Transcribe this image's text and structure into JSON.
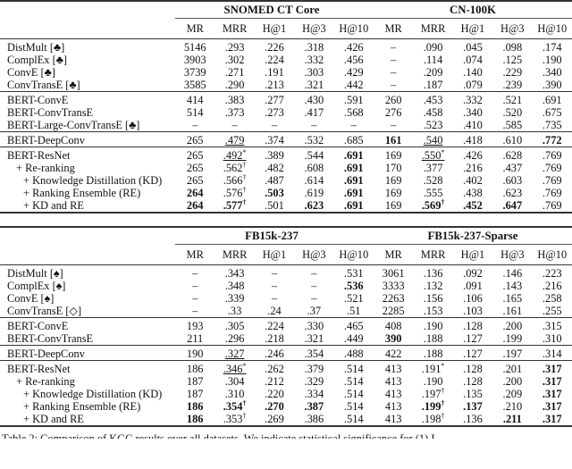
{
  "columns": [
    "MR",
    "MRR",
    "H@1",
    "H@3",
    "H@10",
    "MR",
    "MRR",
    "H@1",
    "H@3",
    "H@10"
  ],
  "tables": [
    {
      "datasets": [
        "SNOMED CT Core",
        "CN-100K"
      ],
      "groups": [
        [
          {
            "label": "DistMult [♣]",
            "cells": [
              "5146",
              ".293",
              ".226",
              ".318",
              ".426",
              "–",
              ".090",
              ".045",
              ".098",
              ".174"
            ]
          },
          {
            "label": "ComplEx [♣]",
            "cells": [
              "3903",
              ".302",
              ".224",
              ".332",
              ".456",
              "–",
              ".114",
              ".074",
              ".125",
              ".190"
            ]
          },
          {
            "label": "ConvE [♣]",
            "cells": [
              "3739",
              ".271",
              ".191",
              ".303",
              ".429",
              "–",
              ".209",
              ".140",
              ".229",
              ".340"
            ]
          },
          {
            "label": "ConvTransE [♣]",
            "cells": [
              "3585",
              ".290",
              ".213",
              ".321",
              ".442",
              "–",
              ".187",
              ".079",
              ".239",
              ".390"
            ]
          }
        ],
        [
          {
            "label": "BERT-ConvE",
            "cells": [
              "414",
              ".383",
              ".277",
              ".430",
              ".591",
              "260",
              ".453",
              ".332",
              ".521",
              ".691"
            ]
          },
          {
            "label": "BERT-ConvTransE",
            "cells": [
              "514",
              ".373",
              ".273",
              ".417",
              ".568",
              "276",
              ".458",
              ".340",
              ".520",
              ".675"
            ]
          },
          {
            "label": "BERT-Large-ConvTransE [♣]",
            "cells": [
              "–",
              "–",
              "–",
              "–",
              "–",
              "–",
              ".523",
              ".410",
              ".585",
              ".735"
            ]
          }
        ],
        [
          {
            "label": "BERT-DeepConv",
            "cells": [
              "265",
              {
                "v": ".479",
                "u": true
              },
              ".374",
              ".532",
              ".685",
              {
                "v": "161",
                "b": true
              },
              {
                "v": ".540",
                "u": true
              },
              ".418",
              ".610",
              {
                "v": ".772",
                "b": true
              }
            ]
          }
        ],
        [
          {
            "label": "BERT-ResNet",
            "indent": 0,
            "cells": [
              "265",
              {
                "v": ".492",
                "u": true,
                "sup": "*"
              },
              ".389",
              ".544",
              {
                "v": ".691",
                "b": true
              },
              "169",
              {
                "v": ".550",
                "u": true,
                "sup": "*"
              },
              ".426",
              ".628",
              ".769"
            ]
          },
          {
            "label": "+ Re-ranking",
            "indent": 1,
            "cells": [
              "265",
              {
                "v": ".562",
                "sup": "†"
              },
              ".482",
              ".608",
              {
                "v": ".691",
                "b": true
              },
              "170",
              ".377",
              ".216",
              ".437",
              ".769"
            ]
          },
          {
            "label": "+ Knowledge Distillation (KD)",
            "indent": 2,
            "cells": [
              "265",
              {
                "v": ".566",
                "sup": "†"
              },
              ".487",
              ".614",
              {
                "v": ".691",
                "b": true
              },
              "169",
              ".528",
              ".402",
              ".603",
              ".769"
            ]
          },
          {
            "label": "+ Ranking Ensemble (RE)",
            "indent": 2,
            "cells": [
              {
                "v": "264",
                "b": true
              },
              {
                "v": ".576",
                "sup": "†"
              },
              {
                "v": ".503",
                "b": true
              },
              ".619",
              {
                "v": ".691",
                "b": true
              },
              "169",
              ".555",
              ".438",
              ".623",
              ".769"
            ]
          },
          {
            "label": "+ KD and RE",
            "indent": 2,
            "cells": [
              {
                "v": "264",
                "b": true
              },
              {
                "v": ".577",
                "b": true,
                "sup": "†"
              },
              ".501",
              {
                "v": ".623",
                "b": true
              },
              {
                "v": ".691",
                "b": true
              },
              "169",
              {
                "v": ".569",
                "b": true,
                "sup": "†"
              },
              {
                "v": ".452",
                "b": true
              },
              {
                "v": ".647",
                "b": true
              },
              ".769"
            ]
          }
        ]
      ]
    },
    {
      "datasets": [
        "FB15k-237",
        "FB15k-237-Sparse"
      ],
      "groups": [
        [
          {
            "label": "DistMult [♠]",
            "cells": [
              "–",
              ".343",
              "–",
              "–",
              ".531",
              "3061",
              ".136",
              ".092",
              ".146",
              ".223"
            ]
          },
          {
            "label": "ComplEx [♠]",
            "cells": [
              "–",
              ".348",
              "–",
              "–",
              {
                "v": ".536",
                "b": true
              },
              "3333",
              ".132",
              ".091",
              ".143",
              ".216"
            ]
          },
          {
            "label": "ConvE [♠]",
            "cells": [
              "–",
              ".339",
              "–",
              "–",
              ".521",
              "2263",
              ".156",
              ".106",
              ".165",
              ".258"
            ]
          },
          {
            "label": "ConvTransE [◇]",
            "cells": [
              "–",
              ".33",
              ".24",
              ".37",
              ".51",
              "2285",
              ".153",
              ".103",
              ".161",
              ".255"
            ]
          }
        ],
        [
          {
            "label": "BERT-ConvE",
            "cells": [
              "193",
              ".305",
              ".224",
              ".330",
              ".465",
              "408",
              ".190",
              ".128",
              ".200",
              ".315"
            ]
          },
          {
            "label": "BERT-ConvTransE",
            "cells": [
              "211",
              ".296",
              ".218",
              ".321",
              ".449",
              {
                "v": "390",
                "b": true
              },
              ".188",
              ".127",
              ".199",
              ".310"
            ]
          }
        ],
        [
          {
            "label": "BERT-DeepConv",
            "cells": [
              "190",
              {
                "v": ".327",
                "u": true
              },
              ".246",
              ".354",
              ".488",
              "422",
              ".188",
              ".127",
              ".197",
              ".314"
            ]
          }
        ],
        [
          {
            "label": "BERT-ResNet",
            "indent": 0,
            "cells": [
              "186",
              {
                "v": ".346",
                "u": true,
                "sup": "*"
              },
              ".262",
              ".379",
              ".514",
              "413",
              {
                "v": ".191",
                "sup": "*"
              },
              ".128",
              ".201",
              {
                "v": ".317",
                "b": true
              }
            ]
          },
          {
            "label": "+ Re-ranking",
            "indent": 1,
            "cells": [
              "187",
              ".304",
              ".212",
              ".329",
              ".514",
              "413",
              ".190",
              ".128",
              ".200",
              {
                "v": ".317",
                "b": true
              }
            ]
          },
          {
            "label": "+ Knowledge Distillation (KD)",
            "indent": 2,
            "cells": [
              "187",
              ".310",
              ".220",
              ".334",
              ".514",
              "413",
              {
                "v": ".197",
                "sup": "†"
              },
              ".135",
              ".209",
              {
                "v": ".317",
                "b": true
              }
            ]
          },
          {
            "label": "+ Ranking Ensemble (RE)",
            "indent": 2,
            "cells": [
              {
                "v": "186",
                "b": true
              },
              {
                "v": ".354",
                "b": true,
                "sup": "†"
              },
              {
                "v": ".270",
                "b": true
              },
              {
                "v": ".387",
                "b": true
              },
              ".514",
              "413",
              {
                "v": ".199",
                "b": true,
                "sup": "†"
              },
              {
                "v": ".137",
                "b": true
              },
              ".210",
              {
                "v": ".317",
                "b": true
              }
            ]
          },
          {
            "label": "+ KD and RE",
            "indent": 2,
            "cells": [
              {
                "v": "186",
                "b": true
              },
              {
                "v": ".353",
                "sup": "†"
              },
              ".269",
              ".386",
              ".514",
              "413",
              {
                "v": ".198",
                "sup": "†"
              },
              ".136",
              {
                "v": ".211",
                "b": true
              },
              {
                "v": ".317",
                "b": true
              }
            ]
          }
        ]
      ]
    }
  ],
  "caption": "Table 2: Comparison of KGC results over all datasets. We indicate statistical significance for (1) I"
}
